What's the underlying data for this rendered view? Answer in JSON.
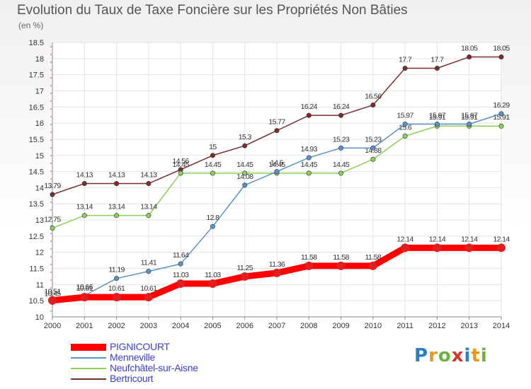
{
  "title": "Evolution du Taux de Taxe Foncière sur les Propriétés Non Bâties",
  "unit_label": "(en %)",
  "logo": {
    "text": "Proxiti",
    "colors": [
      "#2a7fc7",
      "#e89a1c",
      "#6cb33f",
      "#d9342b",
      "#2a7fc7",
      "#e89a1c",
      "#6cb33f"
    ]
  },
  "chart_data": {
    "type": "line",
    "title": "Evolution du Taux de Taxe Foncière sur les Propriétés Non Bâties",
    "ylabel": "(en %)",
    "xlabel": "",
    "x": [
      "2000",
      "2001",
      "2002",
      "2003",
      "2004",
      "2005",
      "2006",
      "2007",
      "2008",
      "2009",
      "2010",
      "2011",
      "2012",
      "2013",
      "2014"
    ],
    "ylim": [
      10,
      18.5
    ],
    "yticks": [
      "10",
      "10.5",
      "11",
      "11.5",
      "12",
      "12.5",
      "13",
      "13.5",
      "14",
      "14.5",
      "15",
      "15.5",
      "16",
      "16.5",
      "17",
      "17.5",
      "18",
      "18.5"
    ],
    "grid": true,
    "legend": "bottom-left",
    "series": [
      {
        "name": "Bertricourt",
        "color": "#7a2f2f",
        "width": 1.5,
        "values": [
          13.79,
          14.13,
          14.13,
          14.13,
          14.56,
          15,
          15.3,
          15.77,
          16.24,
          16.24,
          16.56,
          17.7,
          17.7,
          18.05,
          18.05
        ],
        "labels": [
          "13.79",
          "14.13",
          "14.13",
          "14.13",
          "14.56",
          "15",
          "15.3",
          "15.77",
          "16.24",
          "16.24",
          "16.56",
          "17.7",
          "17.7",
          "18.05",
          "18.05"
        ]
      },
      {
        "name": "Neufchâtel-sur-Aisne",
        "color": "#8ccf5a",
        "width": 1.5,
        "values": [
          12.75,
          13.14,
          13.14,
          13.14,
          14.45,
          14.45,
          14.45,
          14.45,
          14.45,
          14.45,
          14.88,
          15.6,
          15.91,
          15.91,
          15.91
        ],
        "labels": [
          "12.75",
          "13.14",
          "13.14",
          "13.14",
          "14.45",
          "14.45",
          "14.45",
          "14.45",
          "14.45",
          "14.45",
          "14.88",
          "15.6",
          "15.91",
          "15.91",
          "15.91"
        ]
      },
      {
        "name": "Menneville",
        "color": "#5b93c9",
        "width": 1.5,
        "values": [
          10.45,
          10.66,
          11.19,
          11.41,
          11.64,
          12.8,
          14.08,
          14.5,
          14.93,
          15.23,
          15.23,
          15.97,
          15.97,
          15.97,
          16.29
        ],
        "labels": [
          "10.45",
          "10.66",
          "11.19",
          "11.41",
          "11.64",
          "12.8",
          "14.08",
          "14.5",
          "14.93",
          "15.23",
          "15.23",
          "15.97",
          "15.97",
          "15.97",
          "16.29"
        ]
      },
      {
        "name": "PIGNICOURT",
        "color": "#ff0000",
        "width": 9,
        "values": [
          10.51,
          10.61,
          10.61,
          10.61,
          11.03,
          11.03,
          11.25,
          11.36,
          11.58,
          11.58,
          11.58,
          12.14,
          12.14,
          12.14,
          12.14
        ],
        "labels": [
          "10.51",
          "10.61",
          "10.61",
          "10.61",
          "11.03",
          "11.03",
          "11.25",
          "11.36",
          "11.58",
          "11.58",
          "11.58",
          "12.14",
          "12.14",
          "12.14",
          "12.14"
        ]
      }
    ]
  },
  "legend_order": [
    "PIGNICOURT",
    "Menneville",
    "Neufchâtel-sur-Aisne",
    "Bertricourt"
  ]
}
